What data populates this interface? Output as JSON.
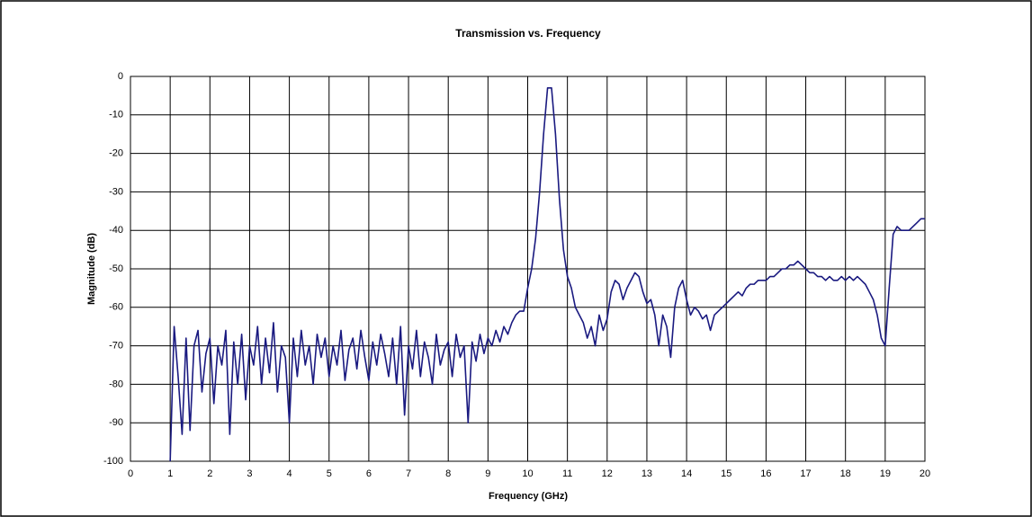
{
  "chart_data": {
    "type": "line",
    "title": "Transmission vs. Frequency",
    "x_label": "Frequency (GHz)",
    "y_label": "Magnitude (dB)",
    "x": [
      1.0,
      1.1,
      1.2,
      1.3,
      1.4,
      1.5,
      1.6,
      1.7,
      1.8,
      1.9,
      2.0,
      2.1,
      2.2,
      2.3,
      2.4,
      2.5,
      2.6,
      2.7,
      2.8,
      2.9,
      3.0,
      3.1,
      3.2,
      3.3,
      3.4,
      3.5,
      3.6,
      3.7,
      3.8,
      3.9,
      4.0,
      4.1,
      4.2,
      4.3,
      4.4,
      4.5,
      4.6,
      4.7,
      4.8,
      4.9,
      5.0,
      5.1,
      5.2,
      5.3,
      5.4,
      5.5,
      5.6,
      5.7,
      5.8,
      5.9,
      6.0,
      6.1,
      6.2,
      6.3,
      6.4,
      6.5,
      6.6,
      6.7,
      6.8,
      6.9,
      7.0,
      7.1,
      7.2,
      7.3,
      7.4,
      7.5,
      7.6,
      7.7,
      7.8,
      7.9,
      8.0,
      8.1,
      8.2,
      8.3,
      8.4,
      8.5,
      8.6,
      8.7,
      8.8,
      8.9,
      9.0,
      9.1,
      9.2,
      9.3,
      9.4,
      9.5,
      9.6,
      9.7,
      9.8,
      9.9,
      10.0,
      10.1,
      10.2,
      10.3,
      10.4,
      10.5,
      10.6,
      10.7,
      10.8,
      10.9,
      11.0,
      11.1,
      11.2,
      11.3,
      11.4,
      11.5,
      11.6,
      11.7,
      11.8,
      11.9,
      12.0,
      12.1,
      12.2,
      12.3,
      12.4,
      12.5,
      12.6,
      12.7,
      12.8,
      12.9,
      13.0,
      13.1,
      13.2,
      13.3,
      13.4,
      13.5,
      13.6,
      13.7,
      13.8,
      13.9,
      14.0,
      14.1,
      14.2,
      14.3,
      14.4,
      14.5,
      14.6,
      14.7,
      14.8,
      14.9,
      15.0,
      15.1,
      15.2,
      15.3,
      15.4,
      15.5,
      15.6,
      15.7,
      15.8,
      15.9,
      16.0,
      16.1,
      16.2,
      16.3,
      16.4,
      16.5,
      16.6,
      16.7,
      16.8,
      16.9,
      17.0,
      17.1,
      17.2,
      17.3,
      17.4,
      17.5,
      17.6,
      17.7,
      17.8,
      17.9,
      18.0,
      18.1,
      18.2,
      18.3,
      18.4,
      18.5,
      18.6,
      18.7,
      18.8,
      18.9,
      19.0,
      19.1,
      19.2,
      19.3,
      19.4,
      19.5,
      19.6,
      19.7,
      19.8,
      19.9,
      20.0
    ],
    "series": [
      {
        "name": "Transmission",
        "color": "#1a1a80",
        "values": [
          -100,
          -65,
          -78,
          -93,
          -68,
          -92,
          -70,
          -66,
          -82,
          -72,
          -68,
          -85,
          -70,
          -75,
          -66,
          -93,
          -69,
          -80,
          -67,
          -84,
          -70,
          -75,
          -65,
          -80,
          -68,
          -77,
          -64,
          -82,
          -70,
          -73,
          -90,
          -68,
          -78,
          -66,
          -75,
          -70,
          -80,
          -67,
          -73,
          -68,
          -78,
          -70,
          -75,
          -66,
          -79,
          -71,
          -68,
          -76,
          -66,
          -73,
          -79,
          -69,
          -75,
          -67,
          -72,
          -78,
          -68,
          -80,
          -65,
          -88,
          -70,
          -76,
          -66,
          -78,
          -69,
          -73,
          -80,
          -67,
          -75,
          -71,
          -69,
          -78,
          -67,
          -73,
          -70,
          -90,
          -69,
          -74,
          -67,
          -72,
          -68,
          -70,
          -66,
          -69,
          -65,
          -67,
          -64,
          -62,
          -61,
          -61,
          -55,
          -50,
          -42,
          -30,
          -15,
          -3,
          -3,
          -15,
          -32,
          -45,
          -52,
          -55,
          -60,
          -62,
          -64,
          -68,
          -65,
          -70,
          -62,
          -66,
          -63,
          -56,
          -53,
          -54,
          -58,
          -55,
          -53,
          -51,
          -52,
          -56,
          -59,
          -58,
          -62,
          -70,
          -62,
          -65,
          -73,
          -60,
          -55,
          -53,
          -58,
          -62,
          -60,
          -61,
          -63,
          -62,
          -66,
          -62,
          -61,
          -60,
          -59,
          -58,
          -57,
          -56,
          -57,
          -55,
          -54,
          -54,
          -53,
          -53,
          -53,
          -52,
          -52,
          -51,
          -50,
          -50,
          -49,
          -49,
          -48,
          -49,
          -50,
          -51,
          -51,
          -52,
          -52,
          -53,
          -52,
          -53,
          -53,
          -52,
          -53,
          -52,
          -53,
          -52,
          -53,
          -54,
          -56,
          -58,
          -62,
          -68,
          -70,
          -55,
          -41,
          -39,
          -40,
          -40,
          -40,
          -39,
          -38,
          -37,
          -37
        ]
      }
    ],
    "xlim": [
      0,
      20
    ],
    "xticks": [
      0,
      1,
      2,
      3,
      4,
      5,
      6,
      7,
      8,
      9,
      10,
      11,
      12,
      13,
      14,
      15,
      16,
      17,
      18,
      19,
      20
    ],
    "ylim": [
      -100,
      0
    ],
    "yticks": [
      0,
      -10,
      -20,
      -30,
      -40,
      -50,
      -60,
      -70,
      -80,
      -90,
      -100
    ],
    "grid": true
  }
}
